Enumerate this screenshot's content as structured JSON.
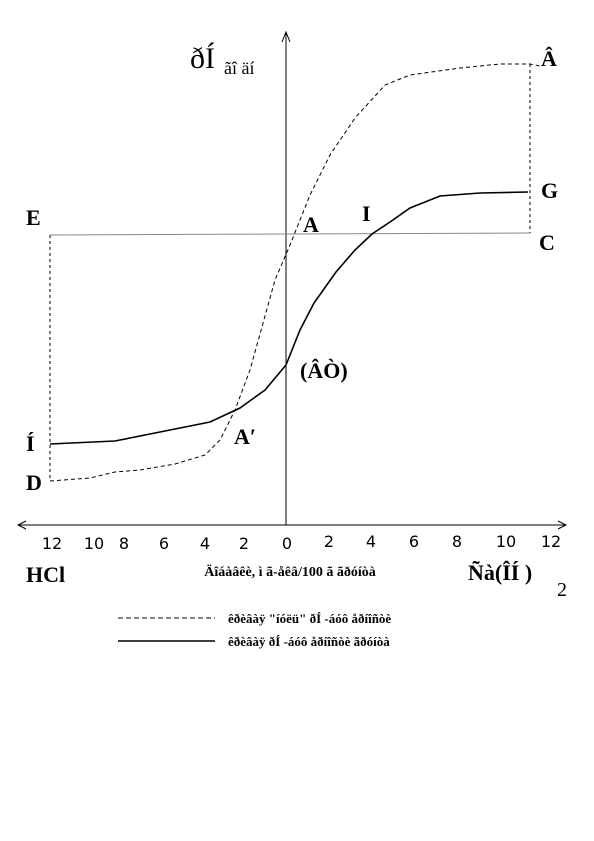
{
  "axis": {
    "y_label": "ðÍ",
    "y_label_sub": "ãî äí",
    "x_label": "Äîáàâêè, ì ã-åêâ/100 ã ãðóíòà",
    "x_left": "HCl",
    "x_right": "Ñà(ÎÍ )",
    "x_right_sub": "2",
    "ticks_left": [
      "12",
      "10",
      "8",
      "6",
      "4",
      "2",
      "0"
    ],
    "ticks_right": [
      "2",
      "4",
      "6",
      "8",
      "10",
      "12"
    ]
  },
  "points": [
    "Â",
    "G",
    "E",
    "A",
    "I",
    "C",
    "(ÂÒ)",
    "Í",
    "A′",
    "D"
  ],
  "legend": [
    "êðèâàÿ \"íóëü\" ðÍ -áóô åðíîñòè",
    "êðèâàÿ ðÍ -áóô åðíîñòè ãðóíòà"
  ]
}
